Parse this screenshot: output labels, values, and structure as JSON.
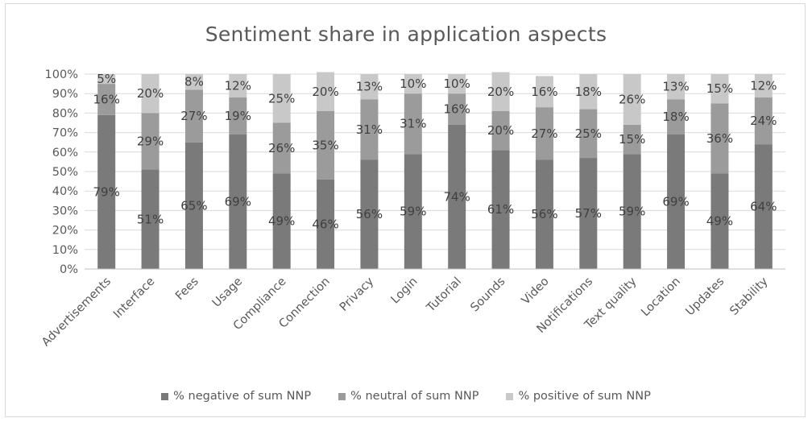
{
  "chart_data": {
    "type": "bar",
    "stacked": true,
    "percent": true,
    "title": "Sentiment share in application aspects",
    "categories": [
      "Advertisements",
      "Interface",
      "Fees",
      "Usage",
      "Compliance",
      "Connection",
      "Privacy",
      "Login",
      "Tutorial",
      "Sounds",
      "Video",
      "Notifications",
      "Text quality",
      "Location",
      "Updates",
      "Stability"
    ],
    "series": [
      {
        "name": "% negative of sum NNP",
        "color": "#7a7a7a",
        "values": [
          79,
          51,
          65,
          69,
          49,
          46,
          56,
          59,
          74,
          61,
          56,
          57,
          59,
          69,
          49,
          64
        ]
      },
      {
        "name": "% neutral of sum NNP",
        "color": "#9b9b9b",
        "values": [
          16,
          29,
          27,
          19,
          26,
          35,
          31,
          31,
          16,
          20,
          27,
          25,
          15,
          18,
          36,
          24
        ]
      },
      {
        "name": "% positive of sum NNP",
        "color": "#c8c8c8",
        "values": [
          5,
          20,
          8,
          12,
          25,
          20,
          13,
          10,
          10,
          20,
          16,
          18,
          26,
          13,
          15,
          12
        ]
      }
    ],
    "yticks": [
      "0%",
      "10%",
      "20%",
      "30%",
      "40%",
      "50%",
      "60%",
      "70%",
      "80%",
      "90%",
      "100%"
    ],
    "ylim": [
      0,
      100
    ],
    "grid": true,
    "legend_position": "bottom"
  }
}
